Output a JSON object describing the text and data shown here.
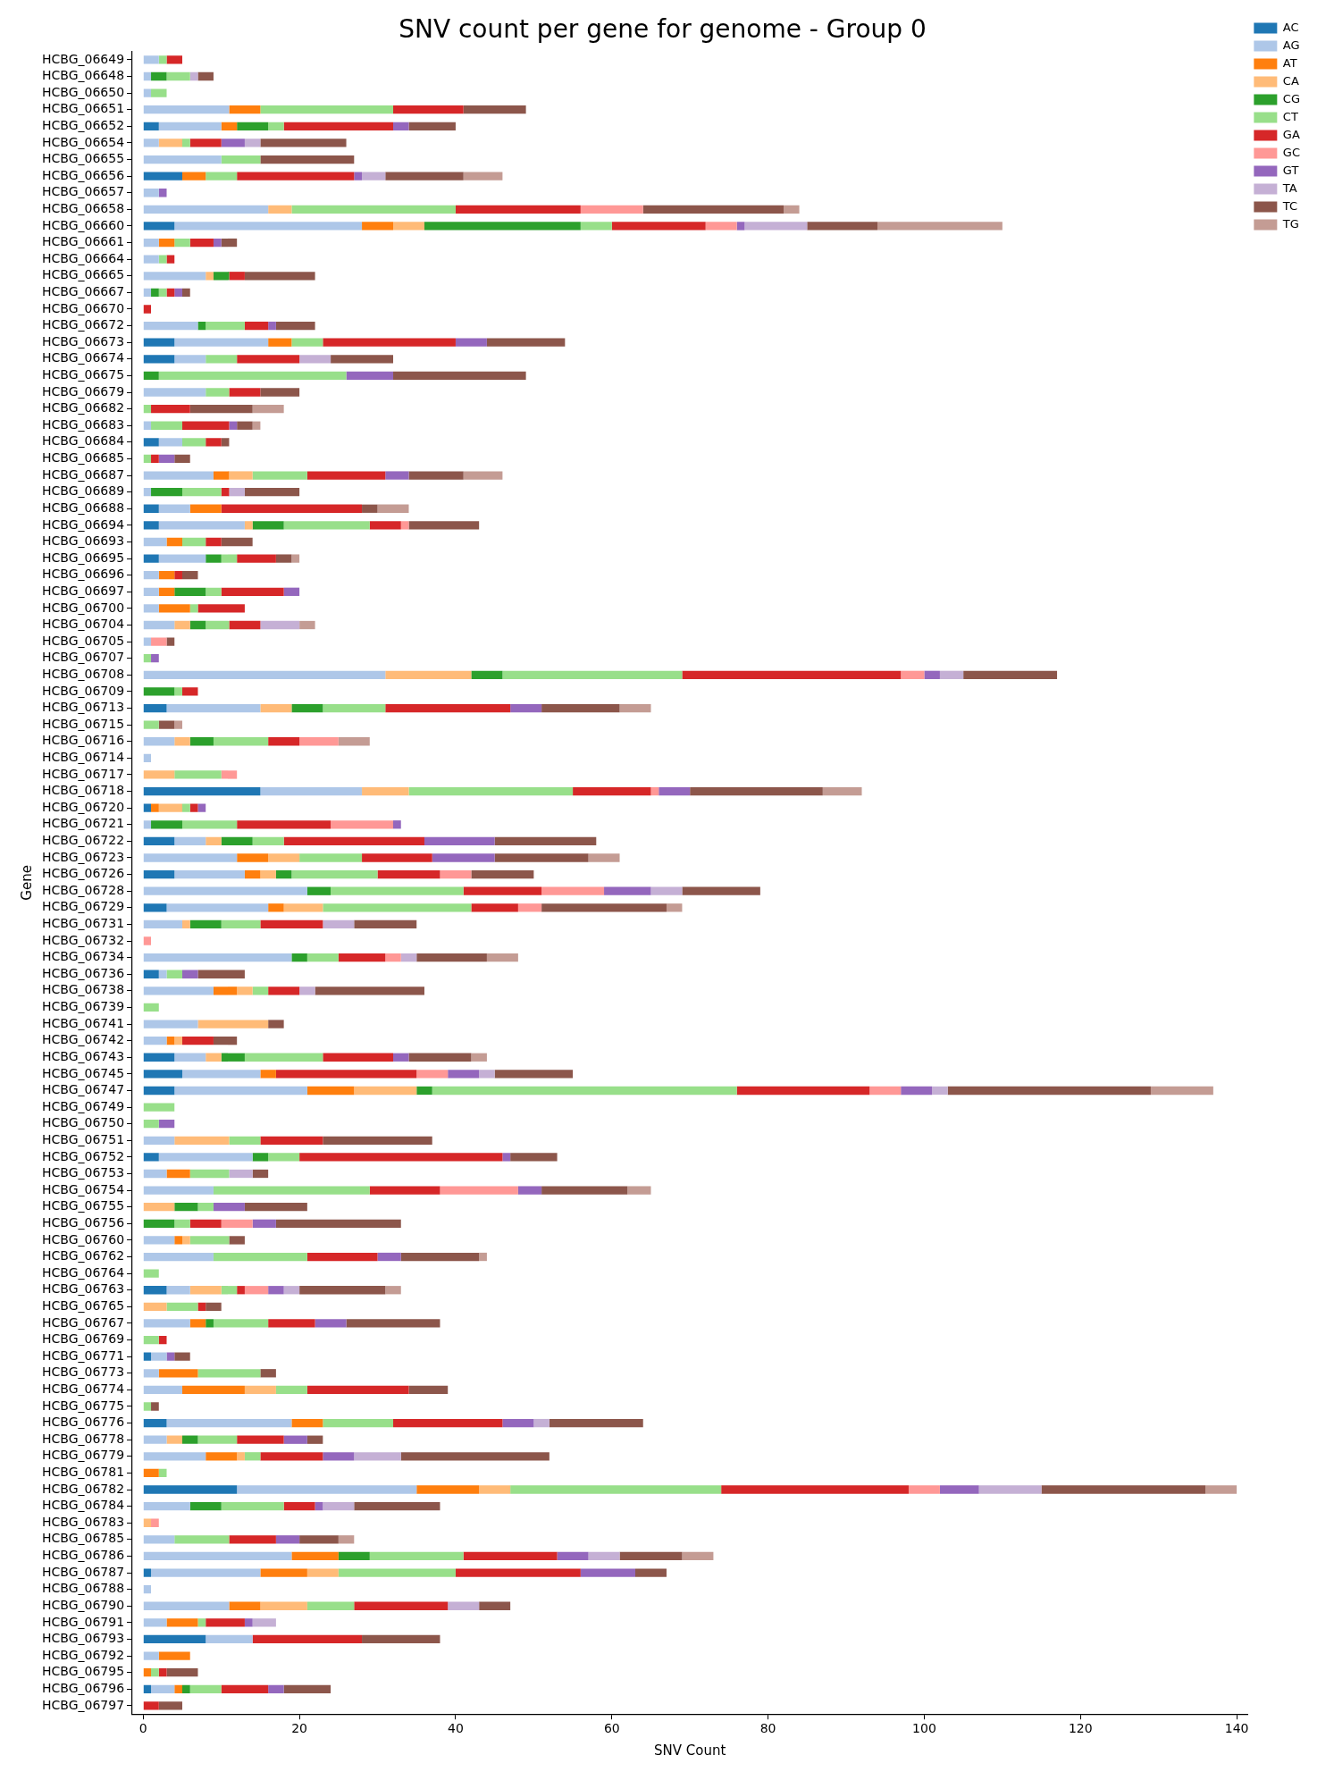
{
  "chart_data": {
    "type": "bar",
    "title": "SNV count per gene for genome - Group 0",
    "xlabel": "SNV Count",
    "ylabel": "Gene",
    "orientation": "horizontal",
    "stacked": true,
    "legend": "top right",
    "grid": false,
    "xlim": [
      -1.4,
      141.4
    ],
    "xticks": [
      0,
      20,
      40,
      60,
      80,
      100,
      120,
      140
    ],
    "categories": [
      "HCBG_06649",
      "HCBG_06648",
      "HCBG_06650",
      "HCBG_06651",
      "HCBG_06652",
      "HCBG_06654",
      "HCBG_06655",
      "HCBG_06656",
      "HCBG_06657",
      "HCBG_06658",
      "HCBG_06660",
      "HCBG_06661",
      "HCBG_06664",
      "HCBG_06665",
      "HCBG_06667",
      "HCBG_06670",
      "HCBG_06672",
      "HCBG_06673",
      "HCBG_06674",
      "HCBG_06675",
      "HCBG_06679",
      "HCBG_06682",
      "HCBG_06683",
      "HCBG_06684",
      "HCBG_06685",
      "HCBG_06687",
      "HCBG_06689",
      "HCBG_06688",
      "HCBG_06694",
      "HCBG_06693",
      "HCBG_06695",
      "HCBG_06696",
      "HCBG_06697",
      "HCBG_06700",
      "HCBG_06704",
      "HCBG_06705",
      "HCBG_06707",
      "HCBG_06708",
      "HCBG_06709",
      "HCBG_06713",
      "HCBG_06715",
      "HCBG_06716",
      "HCBG_06714",
      "HCBG_06717",
      "HCBG_06718",
      "HCBG_06720",
      "HCBG_06721",
      "HCBG_06722",
      "HCBG_06723",
      "HCBG_06726",
      "HCBG_06728",
      "HCBG_06729",
      "HCBG_06731",
      "HCBG_06732",
      "HCBG_06734",
      "HCBG_06736",
      "HCBG_06738",
      "HCBG_06739",
      "HCBG_06741",
      "HCBG_06742",
      "HCBG_06743",
      "HCBG_06745",
      "HCBG_06747",
      "HCBG_06749",
      "HCBG_06750",
      "HCBG_06751",
      "HCBG_06752",
      "HCBG_06753",
      "HCBG_06754",
      "HCBG_06755",
      "HCBG_06756",
      "HCBG_06760",
      "HCBG_06762",
      "HCBG_06764",
      "HCBG_06763",
      "HCBG_06765",
      "HCBG_06767",
      "HCBG_06769",
      "HCBG_06771",
      "HCBG_06773",
      "HCBG_06774",
      "HCBG_06775",
      "HCBG_06776",
      "HCBG_06778",
      "HCBG_06779",
      "HCBG_06781",
      "HCBG_06782",
      "HCBG_06784",
      "HCBG_06783",
      "HCBG_06785",
      "HCBG_06786",
      "HCBG_06787",
      "HCBG_06788",
      "HCBG_06790",
      "HCBG_06791",
      "HCBG_06793",
      "HCBG_06792",
      "HCBG_06795",
      "HCBG_06796",
      "HCBG_06797"
    ],
    "series": [
      {
        "name": "AC",
        "color": "#1f77b4",
        "values": [
          0,
          0,
          0,
          0,
          2,
          0,
          0,
          5,
          0,
          0,
          4,
          0,
          0,
          0,
          0,
          0,
          0,
          4,
          4,
          0,
          0,
          0,
          0,
          2,
          0,
          0,
          0,
          2,
          2,
          0,
          2,
          0,
          0,
          0,
          0,
          0,
          0,
          0,
          0,
          3,
          0,
          0,
          0,
          0,
          15,
          1,
          0,
          4,
          0,
          4,
          0,
          3,
          0,
          0,
          0,
          2,
          0,
          0,
          0,
          0,
          4,
          5,
          4,
          0,
          0,
          0,
          2,
          0,
          0,
          0,
          0,
          0,
          0,
          0,
          3,
          0,
          0,
          0,
          1,
          0,
          0,
          0,
          3,
          0,
          0,
          0,
          12,
          0,
          0,
          0,
          0,
          1,
          0,
          0,
          0,
          8,
          0,
          0,
          1,
          0
        ]
      },
      {
        "name": "AG",
        "color": "#aec7e8",
        "values": [
          2,
          1,
          1,
          11,
          8,
          2,
          10,
          0,
          2,
          16,
          24,
          2,
          2,
          8,
          1,
          0,
          7,
          12,
          4,
          0,
          8,
          0,
          1,
          3,
          0,
          9,
          1,
          4,
          11,
          3,
          6,
          2,
          2,
          2,
          4,
          1,
          0,
          31,
          0,
          12,
          0,
          4,
          1,
          0,
          13,
          0,
          1,
          4,
          12,
          9,
          21,
          13,
          5,
          0,
          19,
          1,
          9,
          0,
          7,
          3,
          4,
          10,
          17,
          0,
          0,
          4,
          12,
          3,
          9,
          0,
          0,
          4,
          9,
          0,
          3,
          0,
          6,
          0,
          2,
          2,
          5,
          0,
          16,
          3,
          8,
          0,
          23,
          6,
          0,
          4,
          19,
          14,
          1,
          11,
          3,
          6,
          2,
          0,
          3,
          0
        ]
      },
      {
        "name": "AT",
        "color": "#ff7f0e",
        "values": [
          0,
          0,
          0,
          4,
          2,
          0,
          0,
          3,
          0,
          0,
          4,
          2,
          0,
          0,
          0,
          0,
          0,
          3,
          0,
          0,
          0,
          0,
          0,
          0,
          0,
          2,
          0,
          4,
          0,
          2,
          0,
          2,
          2,
          4,
          0,
          0,
          0,
          0,
          0,
          0,
          0,
          0,
          0,
          0,
          0,
          1,
          0,
          0,
          4,
          2,
          0,
          2,
          0,
          0,
          0,
          0,
          3,
          0,
          0,
          1,
          0,
          2,
          6,
          0,
          0,
          0,
          0,
          3,
          0,
          0,
          0,
          1,
          0,
          0,
          0,
          0,
          2,
          0,
          0,
          5,
          8,
          0,
          4,
          0,
          4,
          2,
          8,
          0,
          0,
          0,
          6,
          6,
          0,
          4,
          4,
          0,
          4,
          1,
          1,
          0
        ]
      },
      {
        "name": "CA",
        "color": "#ffbb78",
        "values": [
          0,
          0,
          0,
          0,
          0,
          3,
          0,
          0,
          0,
          3,
          4,
          0,
          0,
          1,
          0,
          0,
          0,
          0,
          0,
          0,
          0,
          0,
          0,
          0,
          0,
          3,
          0,
          0,
          1,
          0,
          0,
          0,
          0,
          0,
          2,
          0,
          0,
          11,
          0,
          4,
          0,
          2,
          0,
          4,
          6,
          3,
          0,
          2,
          4,
          2,
          0,
          5,
          1,
          0,
          0,
          0,
          2,
          0,
          9,
          1,
          2,
          0,
          8,
          0,
          0,
          7,
          0,
          0,
          0,
          4,
          0,
          1,
          0,
          0,
          4,
          3,
          0,
          0,
          0,
          0,
          4,
          0,
          0,
          2,
          1,
          0,
          4,
          0,
          1,
          0,
          0,
          4,
          0,
          6,
          0,
          0,
          0,
          0,
          0,
          0
        ]
      },
      {
        "name": "CG",
        "color": "#2ca02c",
        "values": [
          0,
          2,
          0,
          0,
          4,
          0,
          0,
          0,
          0,
          0,
          20,
          0,
          0,
          2,
          1,
          0,
          1,
          0,
          0,
          2,
          0,
          0,
          0,
          0,
          0,
          0,
          4,
          0,
          4,
          0,
          2,
          0,
          4,
          0,
          2,
          0,
          0,
          4,
          4,
          4,
          0,
          3,
          0,
          0,
          0,
          0,
          4,
          4,
          0,
          2,
          3,
          0,
          4,
          0,
          2,
          0,
          0,
          0,
          0,
          0,
          3,
          0,
          2,
          0,
          0,
          0,
          2,
          0,
          0,
          3,
          4,
          0,
          0,
          0,
          0,
          0,
          1,
          0,
          0,
          0,
          0,
          0,
          0,
          2,
          0,
          0,
          0,
          4,
          0,
          0,
          4,
          0,
          0,
          0,
          0,
          0,
          0,
          0,
          1,
          0
        ]
      },
      {
        "name": "CT",
        "color": "#98df8a",
        "values": [
          1,
          3,
          2,
          17,
          2,
          1,
          5,
          4,
          0,
          21,
          4,
          2,
          1,
          0,
          1,
          0,
          5,
          4,
          4,
          24,
          3,
          1,
          4,
          3,
          1,
          7,
          5,
          0,
          11,
          3,
          2,
          0,
          2,
          1,
          3,
          0,
          1,
          23,
          1,
          8,
          2,
          7,
          0,
          6,
          21,
          1,
          7,
          4,
          8,
          11,
          17,
          19,
          5,
          0,
          4,
          2,
          2,
          2,
          0,
          0,
          10,
          0,
          39,
          4,
          2,
          4,
          4,
          5,
          20,
          2,
          2,
          5,
          12,
          2,
          2,
          4,
          7,
          2,
          0,
          8,
          4,
          1,
          9,
          5,
          2,
          1,
          27,
          8,
          0,
          7,
          12,
          15,
          0,
          6,
          1,
          0,
          0,
          1,
          4,
          0
        ]
      },
      {
        "name": "GA",
        "color": "#d62728",
        "values": [
          2,
          0,
          0,
          9,
          14,
          4,
          0,
          15,
          0,
          16,
          12,
          3,
          1,
          2,
          1,
          1,
          3,
          17,
          8,
          0,
          4,
          5,
          6,
          2,
          1,
          10,
          1,
          18,
          4,
          2,
          5,
          1,
          8,
          6,
          4,
          0,
          0,
          28,
          2,
          16,
          0,
          4,
          0,
          0,
          10,
          1,
          12,
          18,
          9,
          8,
          10,
          6,
          8,
          0,
          6,
          0,
          4,
          0,
          0,
          4,
          9,
          18,
          17,
          0,
          0,
          8,
          26,
          0,
          9,
          0,
          4,
          0,
          9,
          0,
          1,
          1,
          6,
          1,
          0,
          0,
          13,
          0,
          14,
          6,
          8,
          0,
          24,
          4,
          0,
          6,
          12,
          16,
          0,
          12,
          5,
          14,
          0,
          1,
          6,
          2
        ]
      },
      {
        "name": "GC",
        "color": "#ff9896",
        "values": [
          0,
          0,
          0,
          0,
          0,
          0,
          0,
          0,
          0,
          8,
          4,
          0,
          0,
          0,
          0,
          0,
          0,
          0,
          0,
          0,
          0,
          0,
          0,
          0,
          0,
          0,
          0,
          0,
          1,
          0,
          0,
          0,
          0,
          0,
          0,
          2,
          0,
          3,
          0,
          0,
          0,
          5,
          0,
          2,
          1,
          0,
          8,
          0,
          0,
          4,
          8,
          3,
          0,
          1,
          2,
          0,
          0,
          0,
          0,
          0,
          0,
          4,
          4,
          0,
          0,
          0,
          0,
          0,
          10,
          0,
          4,
          0,
          0,
          0,
          3,
          0,
          0,
          0,
          0,
          0,
          0,
          0,
          0,
          0,
          0,
          0,
          4,
          0,
          1,
          0,
          0,
          0,
          0,
          0,
          0,
          0,
          0,
          0,
          0,
          0
        ]
      },
      {
        "name": "GT",
        "color": "#9467bd",
        "values": [
          0,
          0,
          0,
          0,
          2,
          3,
          0,
          1,
          1,
          0,
          1,
          1,
          0,
          0,
          1,
          0,
          1,
          4,
          0,
          6,
          0,
          0,
          1,
          0,
          2,
          3,
          0,
          0,
          0,
          0,
          0,
          0,
          2,
          0,
          0,
          0,
          1,
          2,
          0,
          4,
          0,
          0,
          0,
          0,
          4,
          1,
          1,
          9,
          8,
          0,
          6,
          0,
          0,
          0,
          0,
          2,
          0,
          0,
          0,
          0,
          2,
          4,
          4,
          0,
          2,
          0,
          1,
          0,
          3,
          4,
          3,
          0,
          3,
          0,
          2,
          0,
          4,
          0,
          1,
          0,
          0,
          0,
          4,
          3,
          4,
          0,
          5,
          1,
          0,
          3,
          4,
          7,
          0,
          0,
          1,
          0,
          0,
          0,
          2,
          0
        ]
      },
      {
        "name": "TA",
        "color": "#c5b0d5",
        "values": [
          0,
          1,
          0,
          0,
          0,
          2,
          0,
          3,
          0,
          0,
          8,
          0,
          0,
          0,
          0,
          0,
          0,
          0,
          4,
          0,
          0,
          0,
          0,
          0,
          0,
          0,
          2,
          0,
          0,
          0,
          0,
          0,
          0,
          0,
          5,
          0,
          0,
          3,
          0,
          0,
          0,
          0,
          0,
          0,
          0,
          0,
          0,
          0,
          0,
          0,
          4,
          0,
          4,
          0,
          2,
          0,
          2,
          0,
          0,
          0,
          0,
          2,
          2,
          0,
          0,
          0,
          0,
          3,
          0,
          0,
          0,
          0,
          0,
          0,
          2,
          0,
          0,
          0,
          0,
          0,
          0,
          0,
          2,
          0,
          6,
          0,
          8,
          4,
          0,
          0,
          4,
          0,
          0,
          4,
          3,
          0,
          0,
          0,
          0,
          0
        ]
      },
      {
        "name": "TC",
        "color": "#8c564b",
        "values": [
          0,
          2,
          0,
          8,
          6,
          11,
          12,
          10,
          0,
          18,
          9,
          2,
          0,
          9,
          1,
          0,
          5,
          10,
          8,
          17,
          5,
          8,
          2,
          1,
          2,
          7,
          7,
          2,
          9,
          4,
          2,
          2,
          0,
          0,
          0,
          1,
          0,
          12,
          0,
          10,
          2,
          0,
          0,
          0,
          17,
          0,
          0,
          13,
          12,
          8,
          10,
          16,
          8,
          0,
          9,
          6,
          14,
          0,
          2,
          3,
          8,
          10,
          26,
          0,
          0,
          14,
          6,
          2,
          11,
          8,
          16,
          2,
          10,
          0,
          11,
          2,
          12,
          0,
          2,
          2,
          5,
          1,
          12,
          2,
          19,
          0,
          21,
          11,
          0,
          5,
          8,
          4,
          0,
          4,
          0,
          10,
          0,
          4,
          6,
          3
        ]
      },
      {
        "name": "TG",
        "color": "#c49c94",
        "values": [
          0,
          0,
          0,
          0,
          0,
          0,
          0,
          5,
          0,
          2,
          16,
          0,
          0,
          0,
          0,
          0,
          0,
          0,
          0,
          0,
          0,
          4,
          1,
          0,
          0,
          5,
          0,
          4,
          0,
          0,
          1,
          0,
          0,
          0,
          2,
          0,
          0,
          0,
          0,
          4,
          1,
          4,
          0,
          0,
          5,
          0,
          0,
          0,
          4,
          0,
          0,
          2,
          0,
          0,
          4,
          0,
          0,
          0,
          0,
          0,
          2,
          0,
          8,
          0,
          0,
          0,
          0,
          0,
          3,
          0,
          0,
          0,
          1,
          0,
          2,
          0,
          0,
          0,
          0,
          0,
          0,
          0,
          0,
          0,
          0,
          0,
          4,
          0,
          0,
          2,
          4,
          0,
          0,
          0,
          0,
          0,
          0,
          0,
          0,
          0
        ]
      }
    ]
  }
}
